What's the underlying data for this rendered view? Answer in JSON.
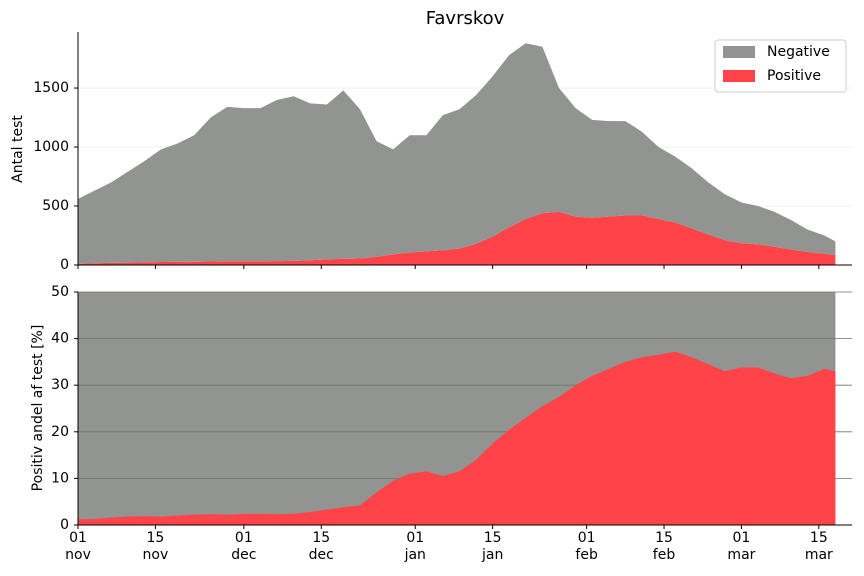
{
  "chart_data": [
    {
      "type": "area",
      "title": "Favrskov",
      "ylabel": "Antal test",
      "stacked": true,
      "legend": "upper right",
      "grid": true,
      "x": [
        0,
        3,
        6,
        9,
        12,
        15,
        18,
        21,
        24,
        27,
        30,
        33,
        36,
        39,
        42,
        45,
        48,
        51,
        54,
        57,
        60,
        63,
        66,
        69,
        72,
        75,
        78,
        81,
        84,
        87,
        90,
        93,
        96,
        99,
        102,
        105,
        108,
        111,
        114,
        117,
        120,
        123,
        126,
        129,
        132,
        135,
        137
      ],
      "xlim": [
        0,
        140
      ],
      "ylim": [
        0,
        1975
      ],
      "yticks": [
        0,
        500,
        1000,
        1500
      ],
      "series": [
        {
          "name": "Positive",
          "color": "#ff4348",
          "values": [
            10,
            15,
            18,
            20,
            22,
            25,
            27,
            28,
            30,
            32,
            32,
            32,
            33,
            35,
            40,
            48,
            52,
            55,
            70,
            90,
            105,
            115,
            125,
            140,
            180,
            240,
            320,
            390,
            440,
            450,
            410,
            400,
            410,
            420,
            420,
            390,
            360,
            310,
            260,
            210,
            185,
            175,
            155,
            130,
            110,
            95,
            85
          ]
        },
        {
          "name": "Negative",
          "color": "#929491",
          "values": [
            550,
            615,
            682,
            770,
            858,
            955,
            1003,
            1072,
            1220,
            1308,
            1298,
            1298,
            1367,
            1395,
            1330,
            1312,
            1428,
            1265,
            980,
            890,
            995,
            985,
            1145,
            1180,
            1260,
            1360,
            1460,
            1490,
            1410,
            1050,
            920,
            830,
            810,
            800,
            710,
            610,
            560,
            510,
            440,
            390,
            345,
            325,
            295,
            250,
            190,
            155,
            115
          ]
        }
      ]
    },
    {
      "type": "area",
      "ylabel": "Positiv andel af test [%]",
      "grid": true,
      "fill_above_color": "#929491",
      "x": [
        0,
        3,
        6,
        9,
        12,
        15,
        18,
        21,
        24,
        27,
        30,
        33,
        36,
        39,
        42,
        45,
        48,
        51,
        54,
        57,
        60,
        63,
        66,
        69,
        72,
        75,
        78,
        81,
        84,
        87,
        90,
        93,
        96,
        99,
        102,
        105,
        108,
        111,
        114,
        117,
        120,
        123,
        126,
        129,
        132,
        135,
        137
      ],
      "xlim": [
        0,
        140
      ],
      "ylim": [
        0,
        50
      ],
      "yticks": [
        0,
        10,
        20,
        30,
        40,
        50
      ],
      "xticks": [
        {
          "value": 0,
          "label": "01\nnov"
        },
        {
          "value": 14,
          "label": "15\nnov"
        },
        {
          "value": 30,
          "label": "01\ndec"
        },
        {
          "value": 44,
          "label": "15\ndec"
        },
        {
          "value": 61,
          "label": "01\njan"
        },
        {
          "value": 75,
          "label": "15\njan"
        },
        {
          "value": 92,
          "label": "01\nfeb"
        },
        {
          "value": 106,
          "label": "15\nfeb"
        },
        {
          "value": 120,
          "label": "01\nmar"
        },
        {
          "value": 134,
          "label": "15\nmar"
        }
      ],
      "series": [
        {
          "name": "Positive",
          "color": "#ff4348",
          "values": [
            1.2,
            1.3,
            1.6,
            1.8,
            1.9,
            1.8,
            2.0,
            2.2,
            2.3,
            2.2,
            2.4,
            2.4,
            2.3,
            2.4,
            2.8,
            3.3,
            3.8,
            4.2,
            7,
            9.5,
            11,
            11.5,
            10.5,
            11.5,
            14,
            17.5,
            20.5,
            23,
            25.5,
            27.5,
            30,
            32,
            33.5,
            35,
            36,
            36.5,
            37.2,
            36,
            34.5,
            33,
            33.8,
            33.8,
            32.5,
            31.5,
            32,
            33.5,
            33
          ]
        }
      ]
    }
  ]
}
